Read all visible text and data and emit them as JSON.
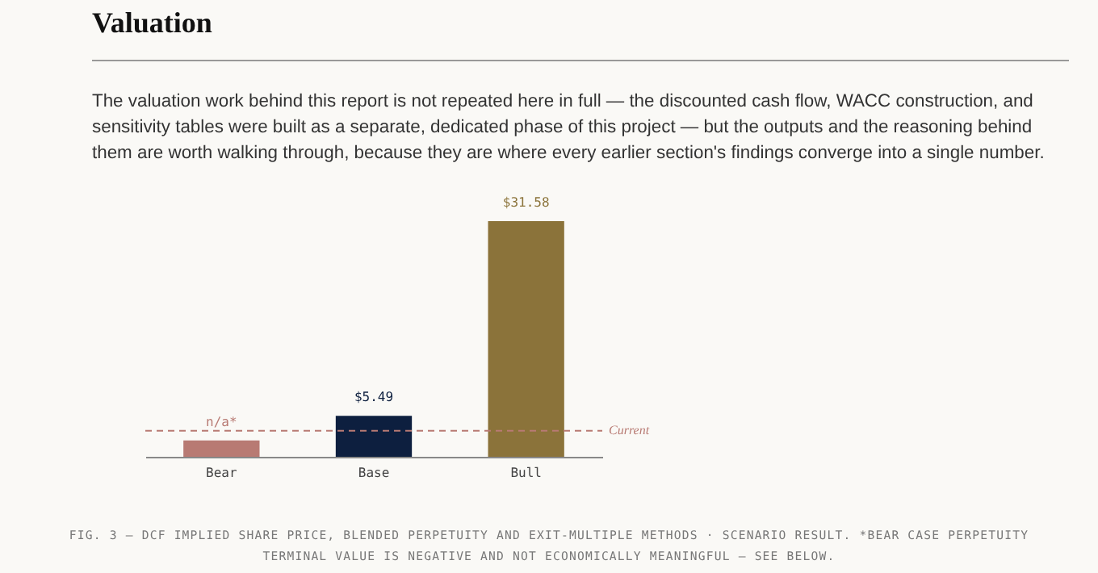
{
  "chart_data": {
    "type": "bar",
    "title": "Valuation",
    "subtitle": "The valuation work behind this report is not repeated here in full — the discounted cash flow, WACC construction, and sensitivity tables were built as a separate, dedicated phase of this project — but the outputs and the reasoning behind them are worth walking through, because they are where every earlier section's findings converge into a single number.",
    "categories": [
      "Bear",
      "Base",
      "Bull"
    ],
    "values": [
      2.2,
      5.49,
      31.58
    ],
    "colors": [
      "#b87a73",
      "#0d1f3f",
      "#8b733a"
    ],
    "value_labels": [
      "n/a*",
      "$5.49",
      "$31.58"
    ],
    "tick_labels": "x",
    "ref_lines": [
      {
        "axis": "y",
        "value": 3.5,
        "label": "Current",
        "color": "#b87a73",
        "line_style": "dashed"
      }
    ],
    "annotations": [
      "FIG. 3 — DCF IMPLIED SHARE PRICE, BLENDED PERPETUITY AND EXIT-MULTIPLE METHODS · SCENARIO RESULT. *BEAR CASE PERPETUITY TERMINAL VALUE IS NEGATIVE AND NOT ECONOMICALLY MEANINGFUL — SEE BELOW."
    ]
  }
}
